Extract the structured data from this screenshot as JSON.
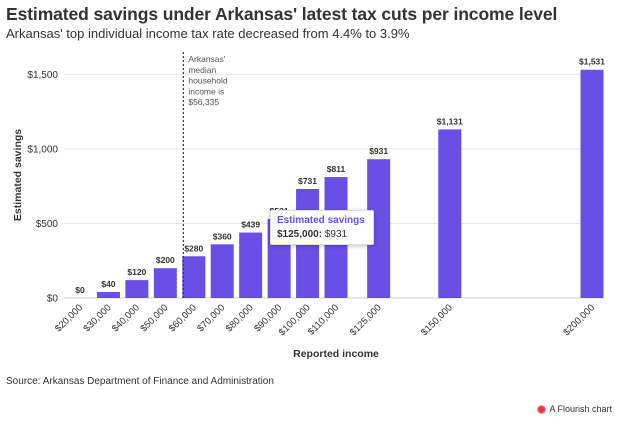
{
  "title": "Estimated savings under Arkansas' latest tax cuts per income level",
  "subtitle": "Arkansas' top individual income tax rate decreased from 4.4% to 3.9%",
  "source": "Source: Arkansas Department of Finance and Administration",
  "credit": "A Flourish chart",
  "tooltip": {
    "title": "Estimated savings",
    "key": "$125,000:",
    "value": "$931"
  },
  "chart_data": {
    "type": "bar",
    "xlabel": "Reported income",
    "ylabel": "Estimated savings",
    "ylim": [
      0,
      1650
    ],
    "yticks": [
      0,
      500,
      1000,
      1500
    ],
    "ytick_labels": [
      "$0",
      "$500",
      "$1,000",
      "$1,500"
    ],
    "grid": true,
    "bar_color": "#6a4fe6",
    "series": [
      {
        "x": [
          20000,
          30000,
          40000,
          50000,
          60000,
          70000,
          80000,
          90000,
          100000,
          110000,
          125000,
          150000,
          200000
        ],
        "values": [
          0,
          40,
          120,
          200,
          280,
          360,
          439,
          531,
          731,
          811,
          931,
          1131,
          1531
        ],
        "labels": [
          "$0",
          "$40",
          "$120",
          "$200",
          "$280",
          "$360",
          "$439",
          "$531",
          "$731",
          "$811",
          "$931",
          "$1,131",
          "$1,531"
        ]
      }
    ],
    "xtick_labels": [
      "$20,000",
      "$30,000",
      "$40,000",
      "$50,000",
      "$60,000",
      "$70,000",
      "$80,000",
      "$90,000",
      "$100,000",
      "$110,000",
      "$125,000",
      "$150,000",
      "$200,000"
    ],
    "annotation": {
      "x": 56335,
      "text": [
        "Arkansas'",
        "median",
        "household",
        "income is",
        "$56,335"
      ]
    }
  }
}
